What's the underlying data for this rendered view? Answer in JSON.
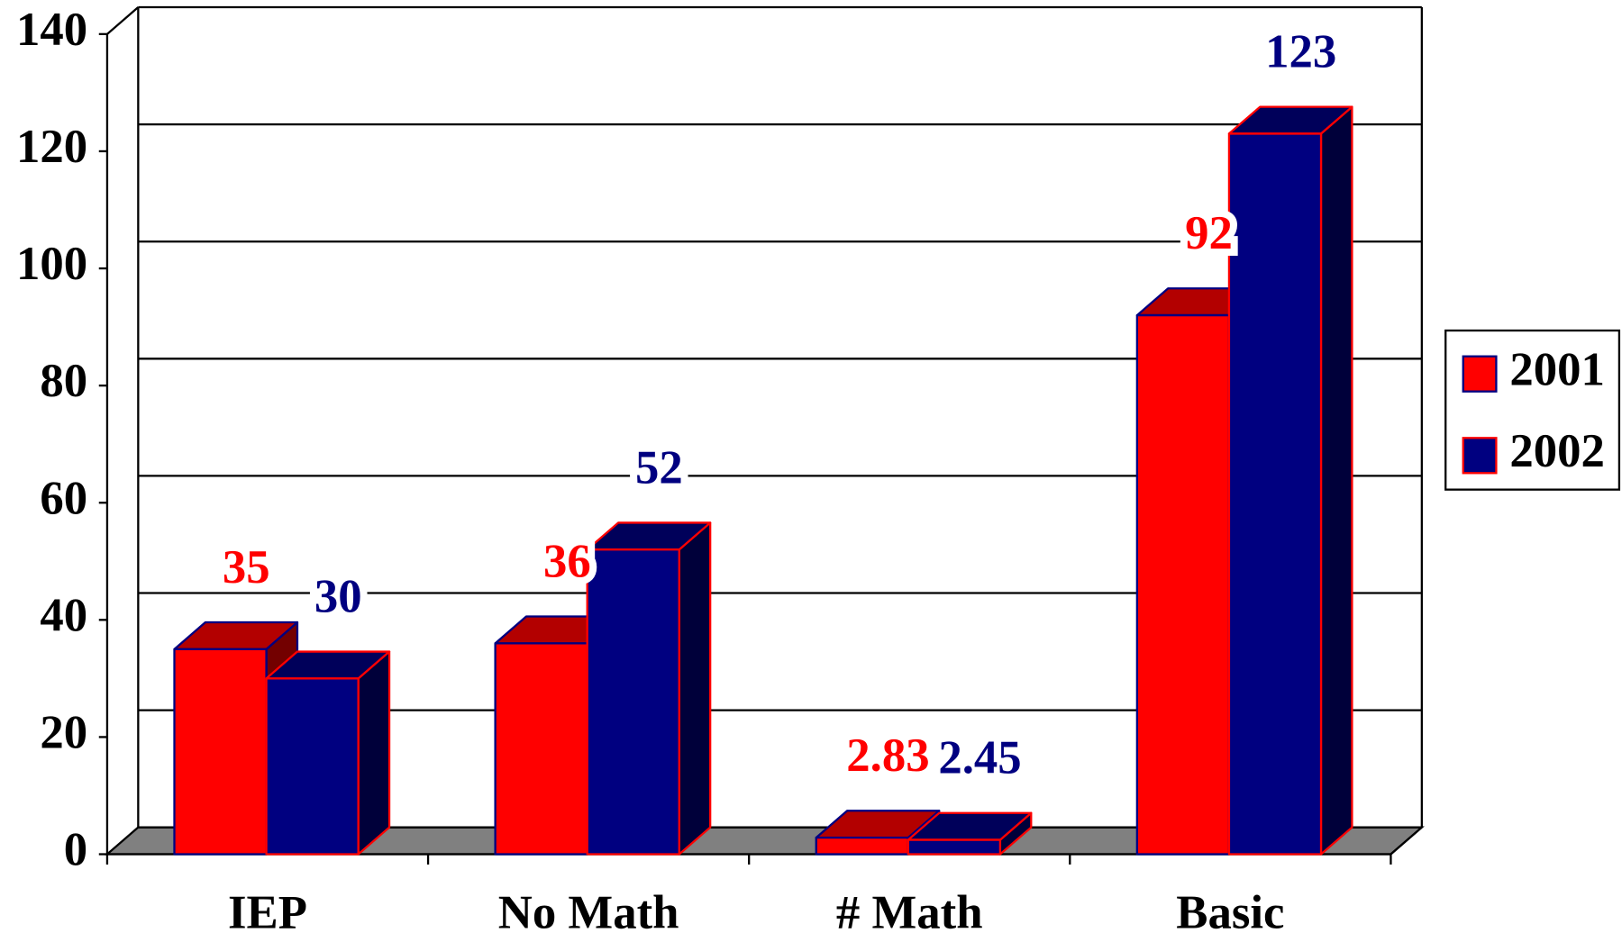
{
  "chart_data": {
    "type": "bar3d",
    "categories": [
      "IEP",
      "No Math",
      "# Math",
      "Basic"
    ],
    "series": [
      {
        "name": "2001",
        "color": "#ff0000",
        "edgecolor": "#000080",
        "values": [
          35,
          36,
          2.83,
          92
        ]
      },
      {
        "name": "2002",
        "color": "#000080",
        "edgecolor": "#ff0000",
        "values": [
          30,
          52,
          2.45,
          123
        ]
      }
    ],
    "ylim": [
      0,
      140
    ],
    "yticks": [
      0,
      20,
      40,
      60,
      80,
      100,
      120,
      140
    ],
    "grid": true,
    "legend": "right",
    "floorcolor": "#808080"
  }
}
